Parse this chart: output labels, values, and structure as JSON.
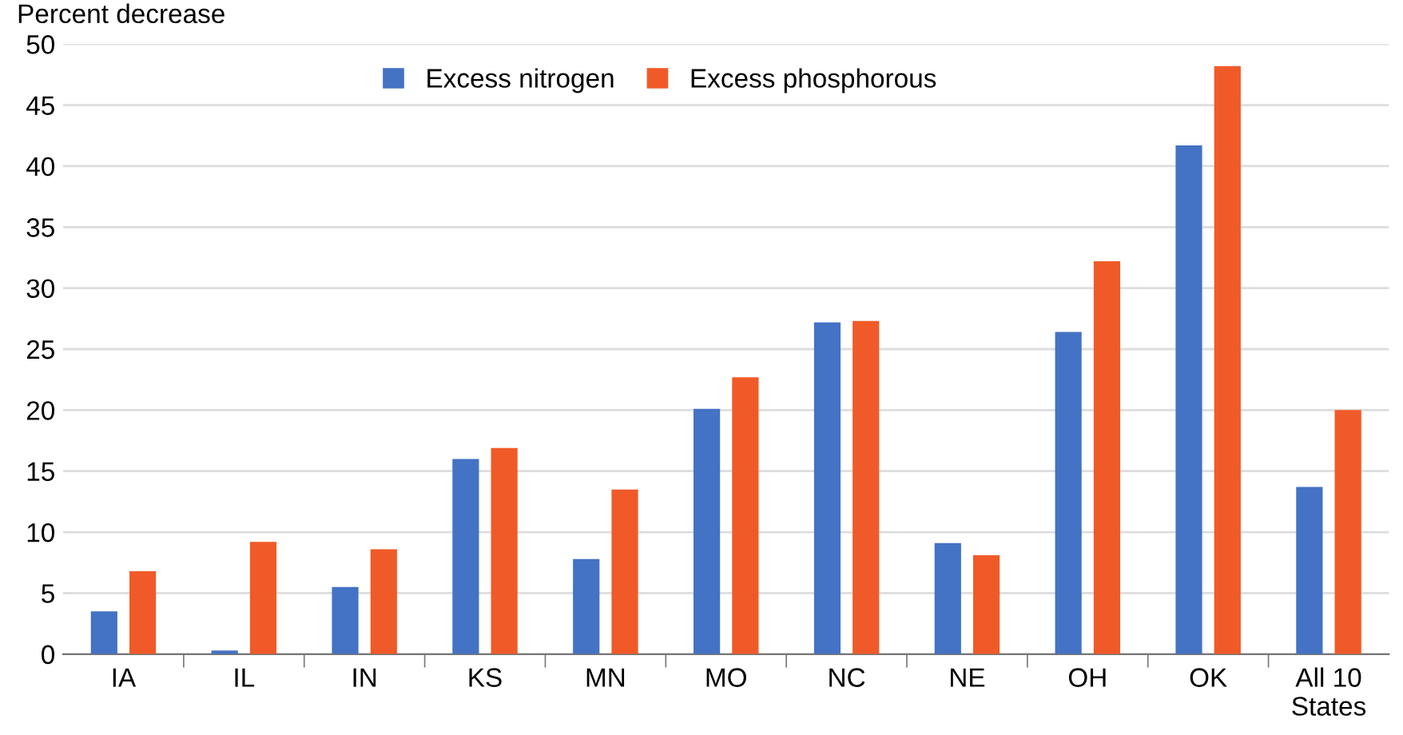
{
  "chart_data": {
    "type": "bar",
    "ylabel": "Percent decrease",
    "categories": [
      "IA",
      "IL",
      "IN",
      "KS",
      "MN",
      "MO",
      "NC",
      "NE",
      "OH",
      "OK",
      "All 10\nStates"
    ],
    "series": [
      {
        "name": "Excess nitrogen",
        "color": "#4472c4",
        "values": [
          3.5,
          0.3,
          5.5,
          16.0,
          7.8,
          20.1,
          27.2,
          9.1,
          26.4,
          41.7,
          13.7
        ]
      },
      {
        "name": "Excess phosphorous",
        "color": "#f05a28",
        "values": [
          6.8,
          9.2,
          8.6,
          16.9,
          13.5,
          22.7,
          27.3,
          8.1,
          32.2,
          48.2,
          20.0
        ]
      }
    ],
    "ylim": [
      0,
      50
    ],
    "yticks": [
      0,
      5,
      10,
      15,
      20,
      25,
      30,
      35,
      40,
      45,
      50
    ],
    "grid": "y",
    "legend": "top"
  }
}
